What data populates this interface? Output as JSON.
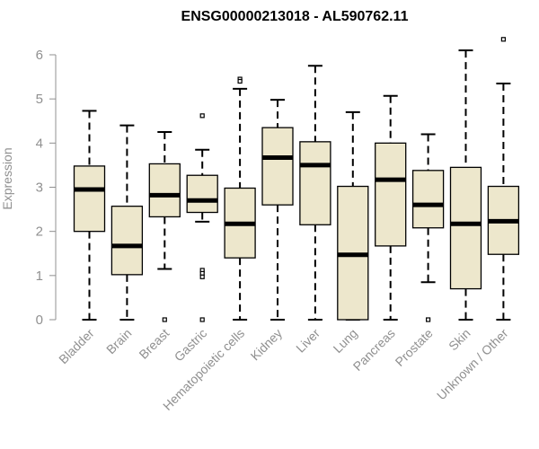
{
  "chart_data": {
    "type": "boxplot",
    "title": "ENSG00000213018 - AL590762.11",
    "xlabel": "",
    "ylabel": "Expression",
    "ylim": [
      0,
      6.4
    ],
    "yticks": [
      0,
      1,
      2,
      3,
      4,
      5,
      6
    ],
    "box_fill": "#ede7cc",
    "categories": [
      "Bladder",
      "Brain",
      "Breast",
      "Gastric",
      "Hematopoietic cells",
      "Kidney",
      "Liver",
      "Lung",
      "Pancreas",
      "Prostate",
      "Skin",
      "Unknown / Other"
    ],
    "boxes": [
      {
        "min": 0.0,
        "q1": 2.0,
        "median": 2.95,
        "q3": 3.48,
        "max": 4.73,
        "outliers": []
      },
      {
        "min": 0.0,
        "q1": 1.02,
        "median": 1.67,
        "q3": 2.57,
        "max": 4.4,
        "outliers": []
      },
      {
        "min": 1.15,
        "q1": 2.33,
        "median": 2.82,
        "q3": 3.53,
        "max": 4.25,
        "outliers": [
          0.0
        ]
      },
      {
        "min": 2.22,
        "q1": 2.43,
        "median": 2.7,
        "q3": 3.27,
        "max": 3.85,
        "outliers": [
          4.62,
          1.12,
          1.05,
          0.97,
          0.0
        ]
      },
      {
        "min": 0.0,
        "q1": 1.4,
        "median": 2.17,
        "q3": 2.98,
        "max": 5.23,
        "outliers": [
          5.45,
          5.4
        ]
      },
      {
        "min": 0.0,
        "q1": 2.6,
        "median": 3.67,
        "q3": 4.35,
        "max": 4.98,
        "outliers": []
      },
      {
        "min": 0.0,
        "q1": 2.15,
        "median": 3.5,
        "q3": 4.03,
        "max": 5.75,
        "outliers": []
      },
      {
        "min": 0.0,
        "q1": 0.0,
        "median": 1.47,
        "q3": 3.02,
        "max": 4.7,
        "outliers": []
      },
      {
        "min": 0.0,
        "q1": 1.67,
        "median": 3.17,
        "q3": 4.0,
        "max": 5.07,
        "outliers": []
      },
      {
        "min": 0.85,
        "q1": 2.08,
        "median": 2.6,
        "q3": 3.38,
        "max": 4.2,
        "outliers": [
          0.0
        ]
      },
      {
        "min": 0.0,
        "q1": 0.7,
        "median": 2.17,
        "q3": 3.45,
        "max": 6.1,
        "outliers": []
      },
      {
        "min": 0.0,
        "q1": 1.48,
        "median": 2.23,
        "q3": 3.02,
        "max": 5.35,
        "outliers": [
          6.35
        ]
      }
    ]
  }
}
